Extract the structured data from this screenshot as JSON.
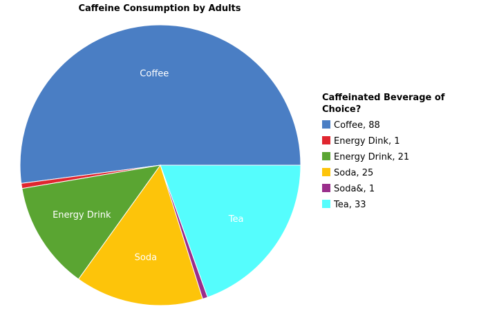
{
  "chart_data": {
    "type": "pie",
    "title": "Caffeine Consumption by Adults",
    "legend_title": "Caffeinated Beverage of Choice?",
    "legend_placement": "right",
    "slices": [
      {
        "label": "Coffee",
        "value": 88,
        "color": "#4a7ec4",
        "legend_text": "Coffee, 88",
        "inner_label": "Coffee"
      },
      {
        "label": "Energy Dink",
        "value": 1,
        "color": "#e0262f",
        "legend_text": "Energy Dink, 1",
        "inner_label": ""
      },
      {
        "label": "Energy Drink",
        "value": 21,
        "color": "#5aa532",
        "legend_text": "Energy Drink, 21",
        "inner_label": "Energy Drink"
      },
      {
        "label": "Soda",
        "value": 25,
        "color": "#fdc40a",
        "legend_text": "Soda, 25",
        "inner_label": "Soda"
      },
      {
        "label": "Soda&",
        "value": 1,
        "color": "#9a2e8b",
        "legend_text": "Soda&, 1",
        "inner_label": ""
      },
      {
        "label": "Tea",
        "value": 33,
        "color": "#55fdfd",
        "legend_text": "Tea, 33",
        "inner_label": "Tea"
      }
    ]
  }
}
